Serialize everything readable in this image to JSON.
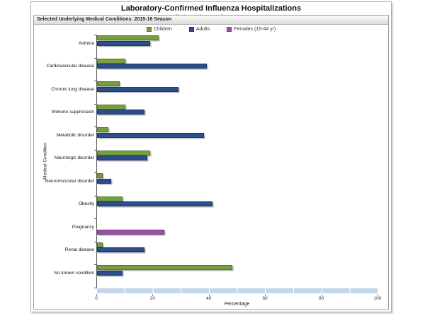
{
  "page": {
    "title": "Laboratory-Confirmed Influenza Hospitalizations",
    "subtitle": "Preliminary data as of Apr 23, 2016",
    "panel_header": "Selected Underlying Medical Conditions: 2015-16 Season"
  },
  "chart_data": {
    "type": "bar",
    "orientation": "horizontal",
    "title": "Laboratory-Confirmed Influenza Hospitalizations",
    "subtitle": "Preliminary data as of Apr 23, 2016",
    "categories": [
      "Asthma",
      "Cardiovascular disease",
      "Chronic lung disease",
      "Immune suppression",
      "Metabolic disorder",
      "Neurologic disorder",
      "Neuromuscular disorder",
      "Obesity",
      "Pregnancy",
      "Renal disease",
      "No known condition"
    ],
    "series": [
      {
        "name": "Children",
        "color": "#76a03e",
        "border": "#567a26",
        "values": [
          22,
          10,
          8,
          10,
          4,
          19,
          2,
          9,
          null,
          2,
          48
        ]
      },
      {
        "name": "Adults",
        "color": "#2a4d8c",
        "border": "#1b3765",
        "values": [
          19,
          39,
          29,
          17,
          38,
          18,
          5,
          41,
          null,
          17,
          9
        ]
      },
      {
        "name": "Females (15-44 yr)",
        "color": "#9b50a5",
        "border": "#6f3a7a",
        "values": [
          null,
          null,
          null,
          null,
          null,
          null,
          null,
          null,
          24,
          null,
          null
        ]
      }
    ],
    "xlabel": "Percentage",
    "ylabel": "Medical Condition",
    "xlim": [
      0,
      100
    ],
    "xticks": [
      0,
      20,
      40,
      60,
      80,
      100
    ],
    "grid": false,
    "legend_position": "top",
    "scroll_band_color": "#c4d7ea"
  }
}
